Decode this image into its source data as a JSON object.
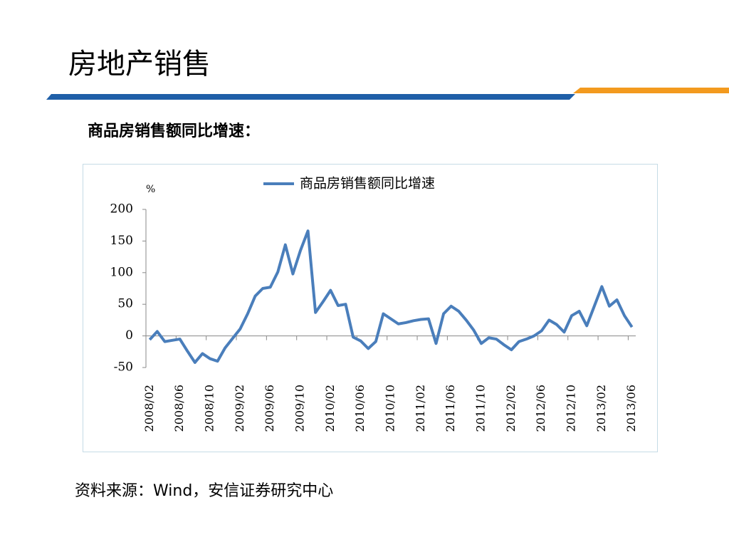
{
  "page": {
    "title": "房地产销售",
    "subtitle": "商品房销售额同比增速：",
    "source": "资料来源：Wind，安信证券研究中心"
  },
  "chart_data": {
    "type": "line",
    "y_label": "%",
    "categories": [
      "2008/02",
      null,
      null,
      null,
      "2008/06",
      null,
      null,
      null,
      "2008/10",
      null,
      null,
      null,
      "2009/02",
      null,
      null,
      null,
      "2009/06",
      null,
      null,
      null,
      "2009/10",
      null,
      null,
      null,
      "2010/02",
      null,
      null,
      null,
      "2010/06",
      null,
      null,
      null,
      "2010/10",
      null,
      null,
      null,
      "2011/02",
      null,
      null,
      null,
      "2011/06",
      null,
      null,
      null,
      "2011/10",
      null,
      null,
      null,
      "2012/02",
      null,
      null,
      null,
      "2012/06",
      null,
      null,
      null,
      "2012/10",
      null,
      null,
      null,
      "2013/02",
      null,
      null,
      null,
      "2013/06"
    ],
    "series": [
      {
        "name": "商品房销售额同比增速",
        "color": "#4a7ebb",
        "values": [
          -6,
          7,
          -9,
          -7,
          -5,
          -24,
          -42,
          -28,
          -36,
          -40,
          -19,
          -4,
          11,
          35,
          63,
          75,
          77,
          101,
          144,
          98,
          135,
          166,
          37,
          54,
          72,
          48,
          50,
          -2,
          -8,
          -20,
          -9,
          35,
          27,
          19,
          21,
          24,
          26,
          27,
          -12,
          35,
          47,
          39,
          25,
          9,
          -12,
          -3,
          -5,
          -14,
          -22,
          -9,
          -5,
          0,
          8,
          25,
          18,
          6,
          32,
          39,
          16,
          47,
          78,
          47,
          57,
          32,
          14
        ]
      }
    ],
    "ylim": [
      -50,
      200
    ],
    "yticks": [
      -50,
      0,
      50,
      100,
      150,
      200
    ],
    "legend": "top"
  }
}
